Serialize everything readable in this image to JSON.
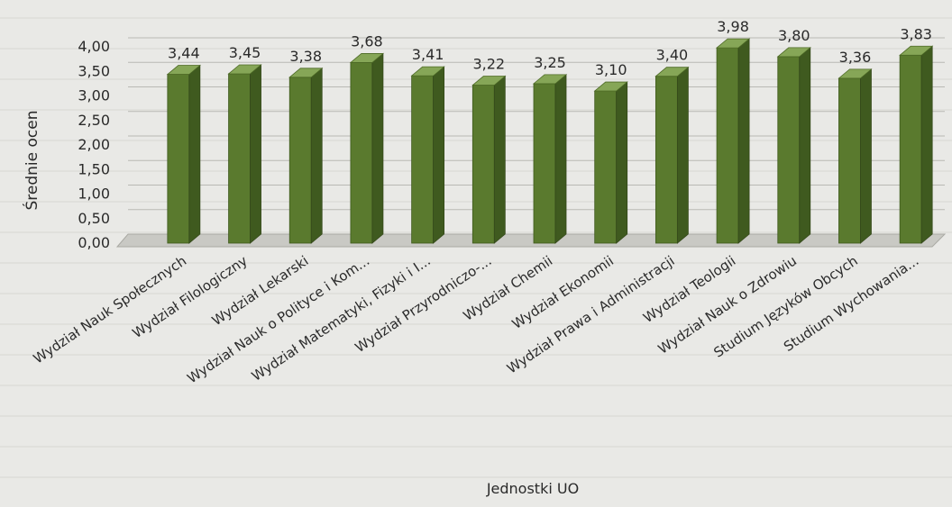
{
  "chart_data": {
    "type": "bar",
    "title": "",
    "xlabel": "Jednostki UO",
    "ylabel": "Średnie ocen",
    "ylim": [
      0,
      4
    ],
    "yticks": [
      "0,00",
      "0,50",
      "1,00",
      "1,50",
      "2,00",
      "2,50",
      "3,00",
      "3,50",
      "4,00"
    ],
    "grid": true,
    "legend": "none",
    "bar_color": "#5a7a2e",
    "categories": [
      "Wydział Nauk Społecznych",
      "Wydział Filologiczny",
      "Wydział Lekarski",
      "Wydział Nauk o Polityce i Kom...",
      "Wydział Matematyki, Fizyki i I...",
      "Wydział Przyrodniczo-...",
      "Wydział Chemii",
      "Wydział Ekonomii",
      "Wydział Prawa i Administracji",
      "Wydział Teologii",
      "Wydział Nauk o Zdrowiu",
      "Studium Języków Obcych",
      "Studium Wychowania..."
    ],
    "values": [
      3.44,
      3.45,
      3.38,
      3.68,
      3.41,
      3.22,
      3.25,
      3.1,
      3.4,
      3.98,
      3.8,
      3.36,
      3.83
    ],
    "value_labels": [
      "3,44",
      "3,45",
      "3,38",
      "3,68",
      "3,41",
      "3,22",
      "3,25",
      "3,10",
      "3,40",
      "3,98",
      "3,80",
      "3,36",
      "3,83"
    ]
  }
}
